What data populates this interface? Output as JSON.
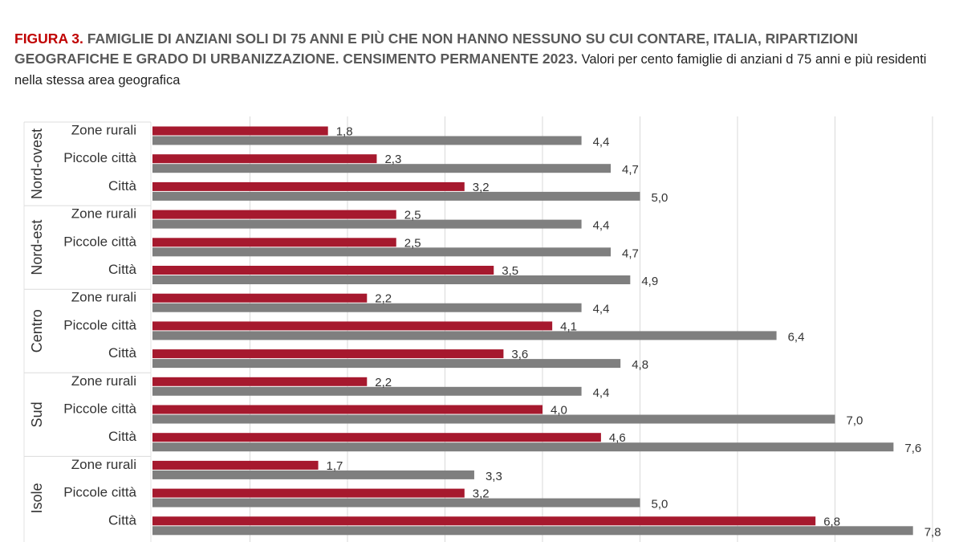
{
  "title": {
    "figure": "FIGURA 3.",
    "bold": "FAMIGLIE DI ANZIANI SOLI DI 75 ANNI E PIÙ CHE NON HANNO NESSUNO SU CUI CONTARE, ITALIA, RIPARTIZIONI GEOGRAFICHE E GRADO DI URBANIZZAZIONE. CENSIMENTO PERMANENTE 2023.",
    "rest": "Valori per cento famiglie di anziani d 75 anni e più residenti nella stessa area geografica"
  },
  "chart_data": {
    "type": "bar",
    "orientation": "horizontal",
    "xlim": [
      0,
      8
    ],
    "grid": true,
    "groups": [
      {
        "name": "Nord-ovest",
        "categories": [
          "Zone rurali",
          "Piccole città",
          "Città"
        ],
        "red": [
          1.8,
          2.3,
          3.2
        ],
        "gray": [
          4.4,
          4.7,
          5.0
        ]
      },
      {
        "name": "Nord-est",
        "categories": [
          "Zone rurali",
          "Piccole città",
          "Città"
        ],
        "red": [
          2.5,
          2.5,
          3.5
        ],
        "gray": [
          4.4,
          4.7,
          4.9
        ]
      },
      {
        "name": "Centro",
        "categories": [
          "Zone rurali",
          "Piccole città",
          "Città"
        ],
        "red": [
          2.2,
          4.1,
          3.6
        ],
        "gray": [
          4.4,
          6.4,
          4.8
        ]
      },
      {
        "name": "Sud",
        "categories": [
          "Zone rurali",
          "Piccole città",
          "Città"
        ],
        "red": [
          2.2,
          4.0,
          4.6
        ],
        "gray": [
          4.4,
          7.0,
          7.6
        ]
      },
      {
        "name": "Isole",
        "categories": [
          "Zone rurali",
          "Piccole città",
          "Città"
        ],
        "red": [
          1.7,
          3.2,
          6.8
        ],
        "gray": [
          3.3,
          5.0,
          7.8
        ]
      }
    ],
    "colors": {
      "red": "#A6192E",
      "gray": "#7F7F7F",
      "grid": "#D9D9D9"
    }
  }
}
